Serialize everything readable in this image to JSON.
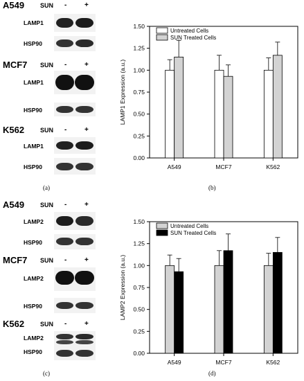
{
  "top": {
    "blots": [
      {
        "cell_line": "A549",
        "sun": "SUN",
        "minus": "-",
        "plus": "+",
        "target": "LAMP1",
        "control": "HSP90"
      },
      {
        "cell_line": "MCF7",
        "sun": "SUN",
        "minus": "-",
        "plus": "+",
        "target": "LAMP1",
        "control": "HSP90"
      },
      {
        "cell_line": "K562",
        "sun": "SUN",
        "minus": "-",
        "plus": "+",
        "target": "LAMP1",
        "control": "HSP90"
      }
    ],
    "caption_left": "(a)",
    "caption_right": "(b)"
  },
  "bottom": {
    "blots": [
      {
        "cell_line": "A549",
        "sun": "SUN",
        "minus": "-",
        "plus": "+",
        "target": "LAMP2",
        "control": "HSP90"
      },
      {
        "cell_line": "MCF7",
        "sun": "SUN",
        "minus": "-",
        "plus": "+",
        "target": "LAMP2",
        "control": "HSP90"
      },
      {
        "cell_line": "K562",
        "sun": "SUN",
        "minus": "-",
        "plus": "+",
        "target": "LAMP2",
        "control": "HSP90"
      }
    ],
    "caption_left": "(c)",
    "caption_right": "(d)"
  },
  "chart_data": [
    {
      "type": "bar",
      "ylabel": "LAMP1 Expression (a.u.)",
      "categories": [
        "A549",
        "MCF7",
        "K562"
      ],
      "ylim": [
        0,
        1.5
      ],
      "yticks": [
        "0.00",
        "0.25",
        "0.50",
        "0.75",
        "1.00",
        "1.25",
        "1.50"
      ],
      "legend_position": "top-left",
      "series": [
        {
          "name": "Untreated Cells",
          "values": [
            1.0,
            1.0,
            1.0
          ],
          "errors": [
            0.12,
            0.17,
            0.14
          ],
          "color": "#ffffff"
        },
        {
          "name": "SUN Treated Cells",
          "values": [
            1.15,
            0.93,
            1.17
          ],
          "errors": [
            0.19,
            0.13,
            0.15
          ],
          "color": "#d3d3d3"
        }
      ]
    },
    {
      "type": "bar",
      "ylabel": "LAMP2 Expression (a.u.)",
      "categories": [
        "A549",
        "MCF7",
        "K562"
      ],
      "ylim": [
        0,
        1.5
      ],
      "yticks": [
        "0.00",
        "0.25",
        "0.50",
        "0.75",
        "1.00",
        "1.25",
        "1.50"
      ],
      "legend_position": "top-left",
      "series": [
        {
          "name": "Untreated Cells",
          "values": [
            1.0,
            1.0,
            1.0
          ],
          "errors": [
            0.12,
            0.17,
            0.14
          ],
          "color": "#d3d3d3"
        },
        {
          "name": "SUN Treated Cells",
          "values": [
            0.93,
            1.17,
            1.15
          ],
          "errors": [
            0.15,
            0.19,
            0.17
          ],
          "color": "#000000"
        }
      ]
    }
  ]
}
